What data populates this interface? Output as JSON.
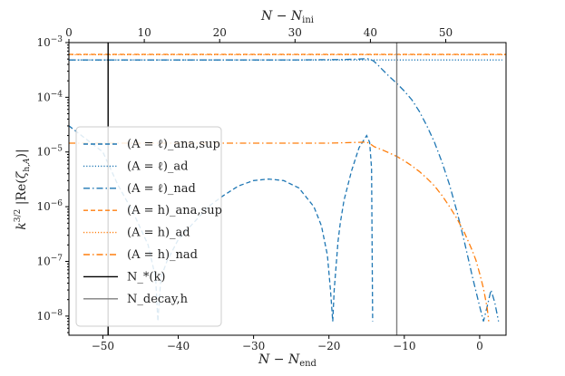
{
  "chart_data": {
    "type": "line",
    "xlabel": "N − N_end",
    "xlabel_top": "N − N_ini",
    "ylabel": "k^{3/2} |Re(ζ^k_{h,A})|",
    "yscale": "log",
    "xlim": [
      -54.5,
      3.5
    ],
    "ylim_exp": [
      -8.35,
      -3
    ],
    "top_xlim": [
      0,
      58
    ],
    "x_ticks": [
      "−50",
      "−40",
      "−30",
      "−20",
      "−10",
      "0"
    ],
    "x_tick_values": [
      -50,
      -40,
      -30,
      -20,
      -10,
      0
    ],
    "top_ticks": [
      "0",
      "10",
      "20",
      "30",
      "40",
      "50"
    ],
    "top_tick_values": [
      0,
      10,
      20,
      30,
      40,
      50
    ],
    "y_ticks": [
      "10^{-8}",
      "10^{-7}",
      "10^{-6}",
      "10^{-5}",
      "10^{-4}",
      "10^{-3}"
    ],
    "y_tick_exps": [
      -8,
      -7,
      -6,
      -5,
      -4,
      -3
    ],
    "legend_position": "lower-left",
    "vlines": [
      {
        "name": "N_*(k)",
        "x": -49.3,
        "color": "#000000"
      },
      {
        "name": "N_decay,h",
        "x": -11.0,
        "color": "#7f7f7f"
      }
    ],
    "series": [
      {
        "name": "(A = ℓ)_ana,sup",
        "style": "dashed",
        "color": "#1f77b4",
        "x": [
          -54.5,
          -50,
          -48,
          -46,
          -44,
          -43,
          -42.7,
          -42.3,
          -41.5,
          -40,
          -38,
          -36,
          -34,
          -32,
          -30,
          -28,
          -26,
          -24,
          -22,
          -21,
          -20.2,
          -19.8,
          -19.5,
          -19.3,
          -19,
          -18.8,
          -18.5,
          -18,
          -17,
          -16,
          -15,
          -14.6,
          -14.35,
          -14.2
        ],
        "y": [
          3e-05,
          1e-05,
          2.5e-06,
          8e-07,
          2e-07,
          5e-08,
          8e-09,
          5e-08,
          1e-07,
          2.5e-07,
          5e-07,
          1e-06,
          1.6e-06,
          2.4e-06,
          3e-06,
          3.2e-06,
          3e-06,
          2.2e-06,
          1e-06,
          4.5e-07,
          1.3e-07,
          3e-08,
          8e-09,
          3e-08,
          1e-07,
          2.3e-07,
          5e-07,
          1.3e-06,
          4.5e-06,
          1.2e-05,
          2e-05,
          1.5e-05,
          5e-06,
          8e-09
        ]
      },
      {
        "name": "(A = ℓ)_ad",
        "style": "dotted",
        "color": "#1f77b4",
        "x": [
          -54.5,
          3
        ],
        "y": [
          0.00048,
          0.00048
        ]
      },
      {
        "name": "(A = ℓ)_nad",
        "style": "dashdot",
        "color": "#1f77b4",
        "x": [
          -54.5,
          -25,
          -18,
          -16,
          -15,
          -14.5,
          -14,
          -13.5,
          -13,
          -12,
          -11,
          -10,
          -9,
          -8,
          -7,
          -6,
          -5,
          -4,
          -3,
          -2,
          -1,
          0,
          0.5,
          1,
          1.5,
          2,
          2.5
        ],
        "y": [
          0.00048,
          0.00048,
          0.00049,
          0.0005,
          0.00051,
          0.0005,
          0.00045,
          0.00039,
          0.00033,
          0.00024,
          0.00018,
          0.00013,
          9e-05,
          5.5e-05,
          3e-05,
          1.5e-05,
          6.5e-06,
          2.5e-06,
          8e-07,
          2.2e-07,
          5.5e-08,
          1.5e-08,
          8e-09,
          1.5e-08,
          3e-08,
          1.8e-08,
          8e-09
        ]
      },
      {
        "name": "(A = h)_ana,sup",
        "style": "dashed",
        "color": "#ff7f0e",
        "x": [
          -54.5,
          3.5
        ],
        "y": [
          0.00061,
          0.00061
        ]
      },
      {
        "name": "(A = h)_ad",
        "style": "dotted",
        "color": "#ff7f0e",
        "x": [
          -54.5,
          3.5
        ],
        "y": [
          0.0006,
          0.0006
        ]
      },
      {
        "name": "(A = h)_nad",
        "style": "dashdot",
        "color": "#ff7f0e",
        "x": [
          -54.5,
          -45,
          -40,
          -35,
          -30,
          -25,
          -20,
          -16,
          -15,
          -14.5,
          -14,
          -13,
          -12,
          -11,
          -10,
          -9,
          -8,
          -7,
          -6,
          -5,
          -4,
          -3,
          -2,
          -1,
          -0.5,
          0,
          0.5,
          1,
          1.2
        ],
        "y": [
          1.45e-05,
          1.45e-05,
          1.45e-05,
          1.45e-05,
          1.45e-05,
          1.45e-05,
          1.45e-05,
          1.5e-05,
          1.52e-05,
          1.4e-05,
          1.25e-05,
          1.1e-05,
          9.6e-06,
          8.3e-06,
          6.9e-06,
          5.6e-06,
          4.4e-06,
          3.3e-06,
          2.4e-06,
          1.6e-06,
          1e-06,
          6e-07,
          3.3e-07,
          1.6e-07,
          1.05e-07,
          6e-08,
          3.2e-08,
          1.4e-08,
          8e-09
        ]
      }
    ]
  }
}
